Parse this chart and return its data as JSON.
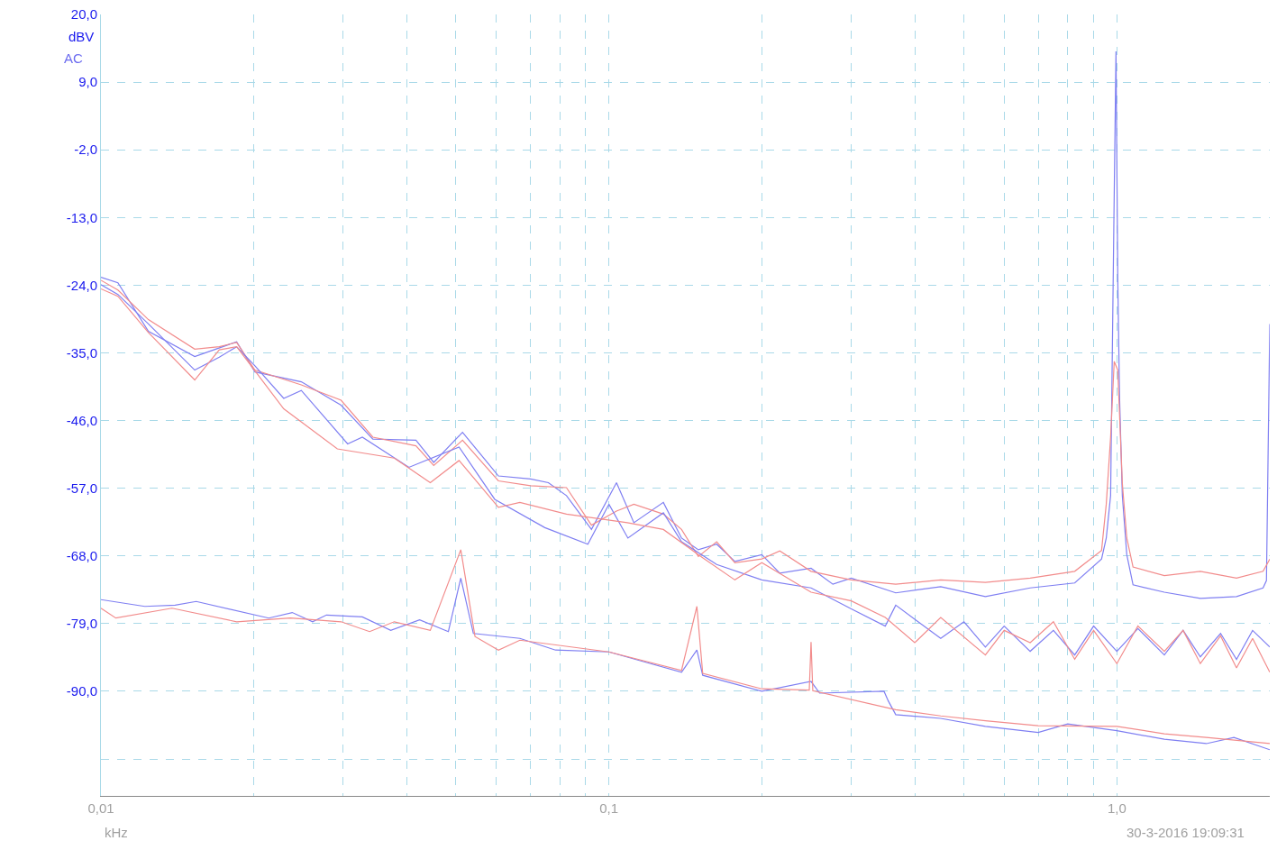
{
  "chart_data": {
    "type": "line",
    "xlabel": "kHz",
    "ylabel": "dBV",
    "annotations": [
      "AC",
      "30-3-2016 19:09:31"
    ],
    "log": "x",
    "grid": true,
    "marker": "none",
    "line_style": "solid",
    "xlim": [
      0.01,
      2.0
    ],
    "ylim": [
      -107,
      20
    ],
    "xticks": [
      {
        "value": 0.01,
        "label": "0,01"
      },
      {
        "value": 0.02,
        "label": null
      },
      {
        "value": 0.03,
        "label": null
      },
      {
        "value": 0.04,
        "label": null
      },
      {
        "value": 0.05,
        "label": null
      },
      {
        "value": 0.06,
        "label": null
      },
      {
        "value": 0.07,
        "label": null
      },
      {
        "value": 0.08,
        "label": null
      },
      {
        "value": 0.09,
        "label": null
      },
      {
        "value": 0.1,
        "label": "0,1"
      },
      {
        "value": 0.2,
        "label": null
      },
      {
        "value": 0.3,
        "label": null
      },
      {
        "value": 0.4,
        "label": null
      },
      {
        "value": 0.5,
        "label": null
      },
      {
        "value": 0.6,
        "label": null
      },
      {
        "value": 0.7,
        "label": null
      },
      {
        "value": 0.8,
        "label": null
      },
      {
        "value": 0.9,
        "label": null
      },
      {
        "value": 1.0,
        "label": "1,0"
      }
    ],
    "yticks": [
      {
        "value": 20,
        "label": "20,0"
      },
      {
        "value": 9,
        "label": "9,0"
      },
      {
        "value": -2,
        "label": "-2,0"
      },
      {
        "value": -13,
        "label": "-13,0"
      },
      {
        "value": -24,
        "label": "-24,0"
      },
      {
        "value": -35,
        "label": "-35,0"
      },
      {
        "value": -46,
        "label": "-46,0"
      },
      {
        "value": -57,
        "label": "-57,0"
      },
      {
        "value": -68,
        "label": "-68,0"
      },
      {
        "value": -79,
        "label": "-79,0"
      },
      {
        "value": -90,
        "label": "-90,0"
      },
      {
        "value": -101,
        "label": null
      }
    ],
    "series": [
      {
        "color": "#7f7ff2",
        "x": [
          0.01,
          0.0108,
          0.0124,
          0.0153,
          0.0185,
          0.0201,
          0.0248,
          0.0297,
          0.0343,
          0.0417,
          0.0452,
          0.0515,
          0.0606,
          0.0701,
          0.076,
          0.0825,
          0.0924,
          0.1035,
          0.112,
          0.128,
          0.139,
          0.15,
          0.163,
          0.177,
          0.2,
          0.217,
          0.25,
          0.276,
          0.3,
          0.367,
          0.45,
          0.551,
          0.675,
          0.826,
          0.933,
          0.953,
          0.972,
          0.988,
          0.996,
          1.004,
          1.012,
          1.025,
          1.046,
          1.076,
          1.24,
          1.46,
          1.72,
          1.94,
          1.97,
          2.0
        ],
        "values": [
          -22.7,
          -23.6,
          -31.5,
          -35.6,
          -33.2,
          -38.1,
          -39.7,
          -43.5,
          -49.0,
          -49.2,
          -52.8,
          -47.9,
          -55.0,
          -55.5,
          -56.1,
          -58.2,
          -63.7,
          -56.1,
          -62.6,
          -59.3,
          -65.1,
          -67.0,
          -66.1,
          -68.9,
          -67.8,
          -70.8,
          -70.0,
          -72.6,
          -71.6,
          -74.0,
          -73.0,
          -74.6,
          -73.2,
          -72.4,
          -68.5,
          -65.1,
          -58.2,
          -9.2,
          14.0,
          -22.8,
          -41.9,
          -58.2,
          -67.8,
          -72.7,
          -73.9,
          -74.9,
          -74.6,
          -73.2,
          -72.0,
          -30.3
        ]
      },
      {
        "color": "#f28c8c",
        "x": [
          0.01,
          0.0108,
          0.0124,
          0.0153,
          0.0171,
          0.0185,
          0.0201,
          0.0248,
          0.0297,
          0.0343,
          0.0417,
          0.0452,
          0.0515,
          0.0606,
          0.0701,
          0.0825,
          0.0924,
          0.1035,
          0.112,
          0.128,
          0.139,
          0.15,
          0.163,
          0.177,
          0.2,
          0.217,
          0.25,
          0.3,
          0.367,
          0.45,
          0.551,
          0.675,
          0.826,
          0.933,
          0.953,
          0.972,
          0.988,
          1.004,
          1.025,
          1.046,
          1.076,
          1.24,
          1.46,
          1.72,
          1.94,
          2.0
        ],
        "values": [
          -23.2,
          -24.8,
          -29.6,
          -34.4,
          -34.0,
          -33.3,
          -37.8,
          -40.2,
          -42.7,
          -48.7,
          -50.1,
          -53.3,
          -49.2,
          -55.8,
          -56.6,
          -56.9,
          -63.0,
          -60.7,
          -59.6,
          -61.2,
          -63.7,
          -68.1,
          -65.7,
          -69.1,
          -68.5,
          -67.2,
          -70.5,
          -71.9,
          -72.6,
          -71.9,
          -72.3,
          -71.6,
          -70.5,
          -67.1,
          -59.6,
          -48.7,
          -36.4,
          -37.8,
          -56.2,
          -65.1,
          -69.8,
          -71.2,
          -70.5,
          -71.6,
          -70.5,
          -68.5
        ]
      },
      {
        "color": "#7f7ff2",
        "x": [
          0.01,
          0.0108,
          0.0124,
          0.0153,
          0.0171,
          0.0185,
          0.0201,
          0.0229,
          0.0248,
          0.0306,
          0.0327,
          0.0404,
          0.0507,
          0.0596,
          0.0748,
          0.0909,
          0.1,
          0.109,
          0.128,
          0.139,
          0.163,
          0.2,
          0.25,
          0.3,
          0.35,
          0.367,
          0.45,
          0.5,
          0.551,
          0.6,
          0.675,
          0.75,
          0.826,
          0.9,
          1.0,
          1.1,
          1.24,
          1.35,
          1.46,
          1.6,
          1.72,
          1.85,
          2.0
        ],
        "values": [
          -23.9,
          -25.5,
          -30.3,
          -37.8,
          -35.7,
          -34.0,
          -37.1,
          -42.4,
          -41.1,
          -49.8,
          -48.7,
          -53.6,
          -50.3,
          -58.8,
          -63.4,
          -66.1,
          -59.6,
          -65.1,
          -61.0,
          -65.7,
          -69.4,
          -71.9,
          -73.2,
          -76.6,
          -79.4,
          -76.0,
          -81.4,
          -78.7,
          -82.8,
          -79.4,
          -83.5,
          -80.1,
          -84.1,
          -79.4,
          -83.5,
          -79.8,
          -84.1,
          -80.1,
          -84.4,
          -80.6,
          -84.8,
          -80.1,
          -82.8
        ]
      },
      {
        "color": "#f28c8c",
        "x": [
          0.01,
          0.0108,
          0.0124,
          0.0153,
          0.0171,
          0.0185,
          0.0229,
          0.0292,
          0.0378,
          0.0445,
          0.0507,
          0.0606,
          0.0668,
          0.0825,
          0.1087,
          0.128,
          0.15,
          0.177,
          0.2,
          0.25,
          0.3,
          0.35,
          0.4,
          0.45,
          0.551,
          0.6,
          0.675,
          0.75,
          0.826,
          0.9,
          1.0,
          1.1,
          1.24,
          1.35,
          1.46,
          1.6,
          1.72,
          1.85,
          2.0
        ],
        "values": [
          -24.6,
          -25.8,
          -31.7,
          -39.4,
          -34.5,
          -34.0,
          -44.1,
          -50.6,
          -52.1,
          -56.1,
          -52.5,
          -60.1,
          -59.3,
          -61.2,
          -62.6,
          -63.7,
          -67.8,
          -71.9,
          -69.1,
          -73.9,
          -75.3,
          -78.0,
          -82.1,
          -78.0,
          -84.1,
          -80.1,
          -82.1,
          -78.7,
          -84.8,
          -80.1,
          -85.5,
          -79.4,
          -83.5,
          -80.1,
          -85.5,
          -81.0,
          -86.2,
          -81.4,
          -86.9
        ]
      },
      {
        "color": "#7f7ff2",
        "x": [
          0.01,
          0.0122,
          0.014,
          0.0154,
          0.0214,
          0.0238,
          0.0261,
          0.0278,
          0.0327,
          0.0372,
          0.0424,
          0.0483,
          0.0511,
          0.0541,
          0.0668,
          0.0785,
          0.1,
          0.139,
          0.149,
          0.153,
          0.2,
          0.25,
          0.26,
          0.348,
          0.355,
          0.367,
          0.45,
          0.551,
          0.7,
          0.8,
          1.0,
          1.24,
          1.5,
          1.7,
          2.0
        ],
        "values": [
          -75.1,
          -76.2,
          -76.0,
          -75.4,
          -78.1,
          -77.2,
          -78.7,
          -77.6,
          -77.9,
          -80.1,
          -78.4,
          -80.3,
          -71.6,
          -80.6,
          -81.4,
          -83.3,
          -83.6,
          -86.9,
          -83.3,
          -87.4,
          -90.0,
          -88.4,
          -90.3,
          -90.0,
          -91.6,
          -93.8,
          -94.4,
          -95.7,
          -96.7,
          -95.3,
          -96.4,
          -97.8,
          -98.5,
          -97.5,
          -99.5
        ]
      },
      {
        "color": "#f28c8c",
        "x": [
          0.01,
          0.0107,
          0.0138,
          0.0185,
          0.0236,
          0.0297,
          0.0338,
          0.0378,
          0.0445,
          0.0511,
          0.0545,
          0.0606,
          0.0668,
          0.1,
          0.139,
          0.149,
          0.153,
          0.2,
          0.248,
          0.25,
          0.252,
          0.367,
          0.45,
          0.551,
          0.7,
          1.0,
          1.24,
          1.5,
          2.0
        ],
        "values": [
          -76.5,
          -78.1,
          -76.5,
          -78.7,
          -78.1,
          -78.7,
          -80.3,
          -78.7,
          -80.1,
          -67.0,
          -81.1,
          -83.3,
          -81.7,
          -83.6,
          -86.6,
          -76.2,
          -87.1,
          -89.6,
          -89.8,
          -82.0,
          -89.9,
          -93.0,
          -94.0,
          -94.8,
          -95.6,
          -95.7,
          -96.9,
          -97.5,
          -98.5
        ]
      }
    ]
  }
}
